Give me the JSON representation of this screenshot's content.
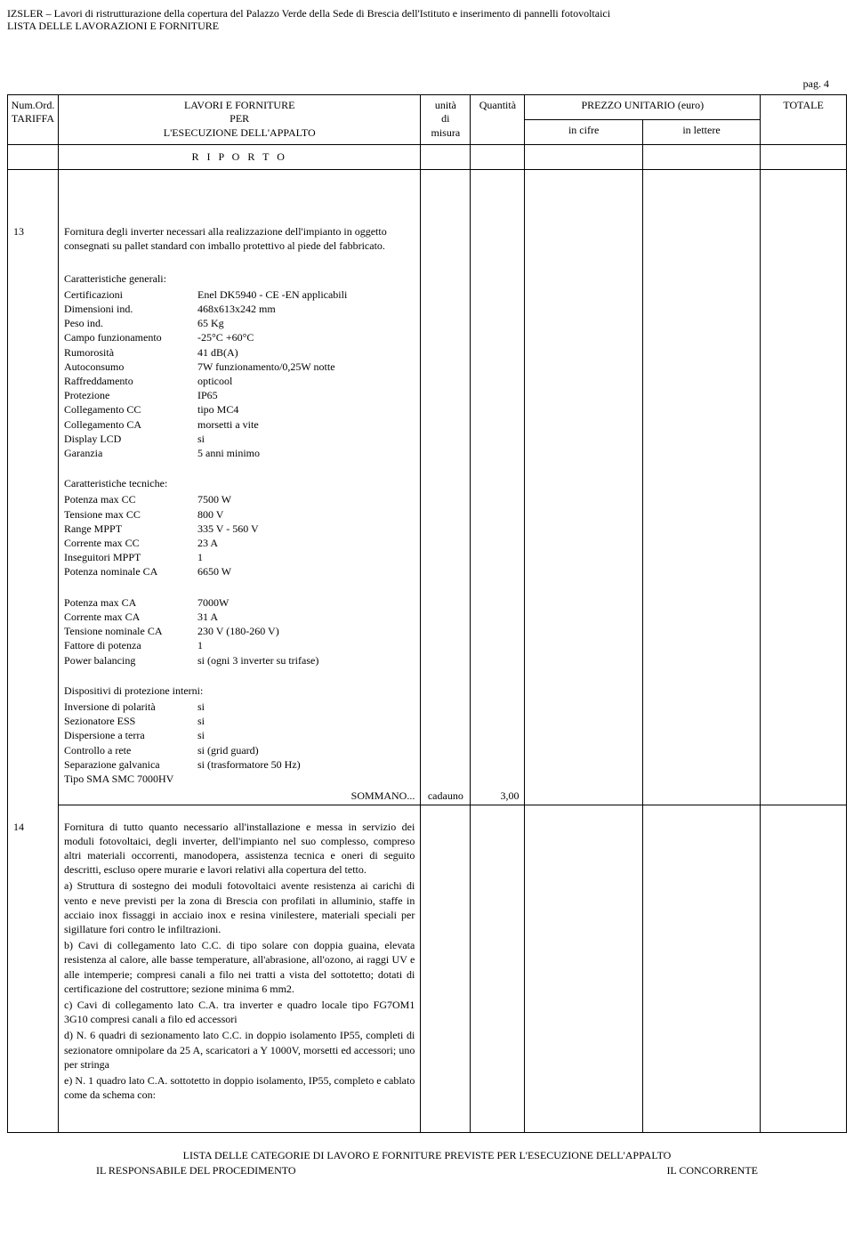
{
  "header": {
    "line1": "IZSLER – Lavori di ristrutturazione della copertura del Palazzo Verde della Sede di Brescia dell'Istituto e inserimento di pannelli fotovoltaici",
    "line2": "LISTA DELLE LAVORAZIONI E FORNITURE"
  },
  "page_label": "pag. 4",
  "table_head": {
    "col1_l1": "Num.Ord.",
    "col1_l2": "TARIFFA",
    "col2_l1": "LAVORI E FORNITURE",
    "col2_l2": "PER",
    "col2_l3": "L'ESECUZIONE DELL'APPALTO",
    "col3_l1": "unità",
    "col3_l2": "di",
    "col3_l3": "misura",
    "col4": "Quantità",
    "col56": "PREZZO UNITARIO (euro)",
    "col5": "in cifre",
    "col6": "in lettere",
    "col7": "TOTALE"
  },
  "riporto": "R I P O R T O",
  "item13": {
    "num": "13",
    "intro": "Fornitura degli inverter necessari alla realizzazione dell'impianto in oggetto consegnati su pallet standard con imballo protettivo al piede del fabbricato.",
    "gen_title": "Caratteristiche generali:",
    "gen": [
      [
        "Certificazioni",
        "Enel DK5940 - CE -EN applicabili"
      ],
      [
        "Dimensioni ind.",
        "468x613x242 mm"
      ],
      [
        "Peso ind.",
        "65 Kg"
      ],
      [
        "Campo funzionamento",
        "-25°C +60°C"
      ],
      [
        "Rumorosità",
        "41 dB(A)"
      ],
      [
        "Autoconsumo",
        "7W funzionamento/0,25W notte"
      ],
      [
        "Raffreddamento",
        "opticool"
      ],
      [
        "Protezione",
        "IP65"
      ],
      [
        "Collegamento CC",
        " tipo MC4"
      ],
      [
        "Collegamento CA",
        " morsetti a vite"
      ],
      [
        "Display LCD",
        " si"
      ],
      [
        "Garanzia",
        "5 anni minimo"
      ]
    ],
    "tech_title": "Caratteristiche tecniche:",
    "tech": [
      [
        "Potenza max CC",
        "7500 W"
      ],
      [
        "Tensione max CC",
        " 800 V"
      ],
      [
        "Range MPPT",
        " 335 V - 560 V"
      ],
      [
        "Corrente max CC",
        "23 A"
      ],
      [
        "Inseguitori MPPT",
        "1"
      ],
      [
        "Potenza nominale CA",
        "6650 W"
      ]
    ],
    "pow": [
      [
        "Potenza max CA",
        "7000W"
      ],
      [
        "Corrente max CA",
        " 31 A"
      ],
      [
        "Tensione nominale CA",
        "  230 V (180-260 V)"
      ],
      [
        "Fattore di potenza",
        "1"
      ],
      [
        "Power balancing",
        "si (ogni 3 inverter su trifase)"
      ]
    ],
    "prot_title": "Dispositivi di protezione interni:",
    "prot": [
      [
        "Inversione di polarità",
        "si"
      ],
      [
        "Sezionatore ESS",
        "si"
      ],
      [
        "Dispersione a terra",
        "si"
      ],
      [
        "Controllo a rete",
        "si (grid guard)"
      ],
      [
        "Separazione galvanica",
        "si (trasformatore 50 Hz)"
      ],
      [
        "Tipo SMA SMC 7000HV",
        ""
      ]
    ],
    "sommano": "SOMMANO...",
    "um": "cadauno",
    "qty": "3,00"
  },
  "item14": {
    "num": "14",
    "text": "Fornitura  di  tutto  quanto  necessario  all'installazione  e messa in servizio dei moduli fotovoltaici, degli inverter,  dell'impianto nel  suo complesso,  compreso altri materiali occorrenti, manodopera, assistenza tecnica e oneri di  seguito  descritti,  escluso   opere  murarie  e   lavori relativi alla copertura del tetto.",
    "a": "    a)      Struttura di sostegno dei moduli fotovoltaici avente resistenza ai carichi di  vento e neve previsti per la zona  di  Brescia  con  profilati  in alluminio, staffe in         acciaio inox  fissaggi  in  acciaio  inox  e resina  vinilestere, materiali speciali per sigillature fori contro le infiltrazioni.",
    "b": "    b)    Cavi   di   collegamento lato C.C.  di tipo solare con doppia guaina, elevata resistenza al calore, alle basse temperature, all'abrasione,  all'ozono,  ai raggi UV e  alle intemperie; compresi canali a filo nei tratti a vista del sottotetto;  dotati di certificazione del costruttore;  sezione minima 6 mm2.",
    "c": "    c)      Cavi di collegamento lato C.A. tra inverter e quadro locale tipo FG7OM1 3G10 compresi canali a filo ed accessori",
    "d": "    d)      N. 6 quadri di sezionamento lato C.C. in doppio isolamento IP55, completi di sezionatore omnipolare da 25 A, scaricatori a Y 1000V, morsetti ed accessori;   uno per stringa",
    "e": "    e)     N. 1 quadro lato C.A. sottotetto in doppio isolamento, IP55, completo e cablato come da schema con:"
  },
  "footer": {
    "line1": "LISTA DELLE CATEGORIE DI LAVORO E FORNITURE PREVISTE PER L'ESECUZIONE DELL'APPALTO",
    "left": "IL RESPONSABILE DEL PROCEDIMENTO",
    "right": "IL CONCORRENTE"
  }
}
